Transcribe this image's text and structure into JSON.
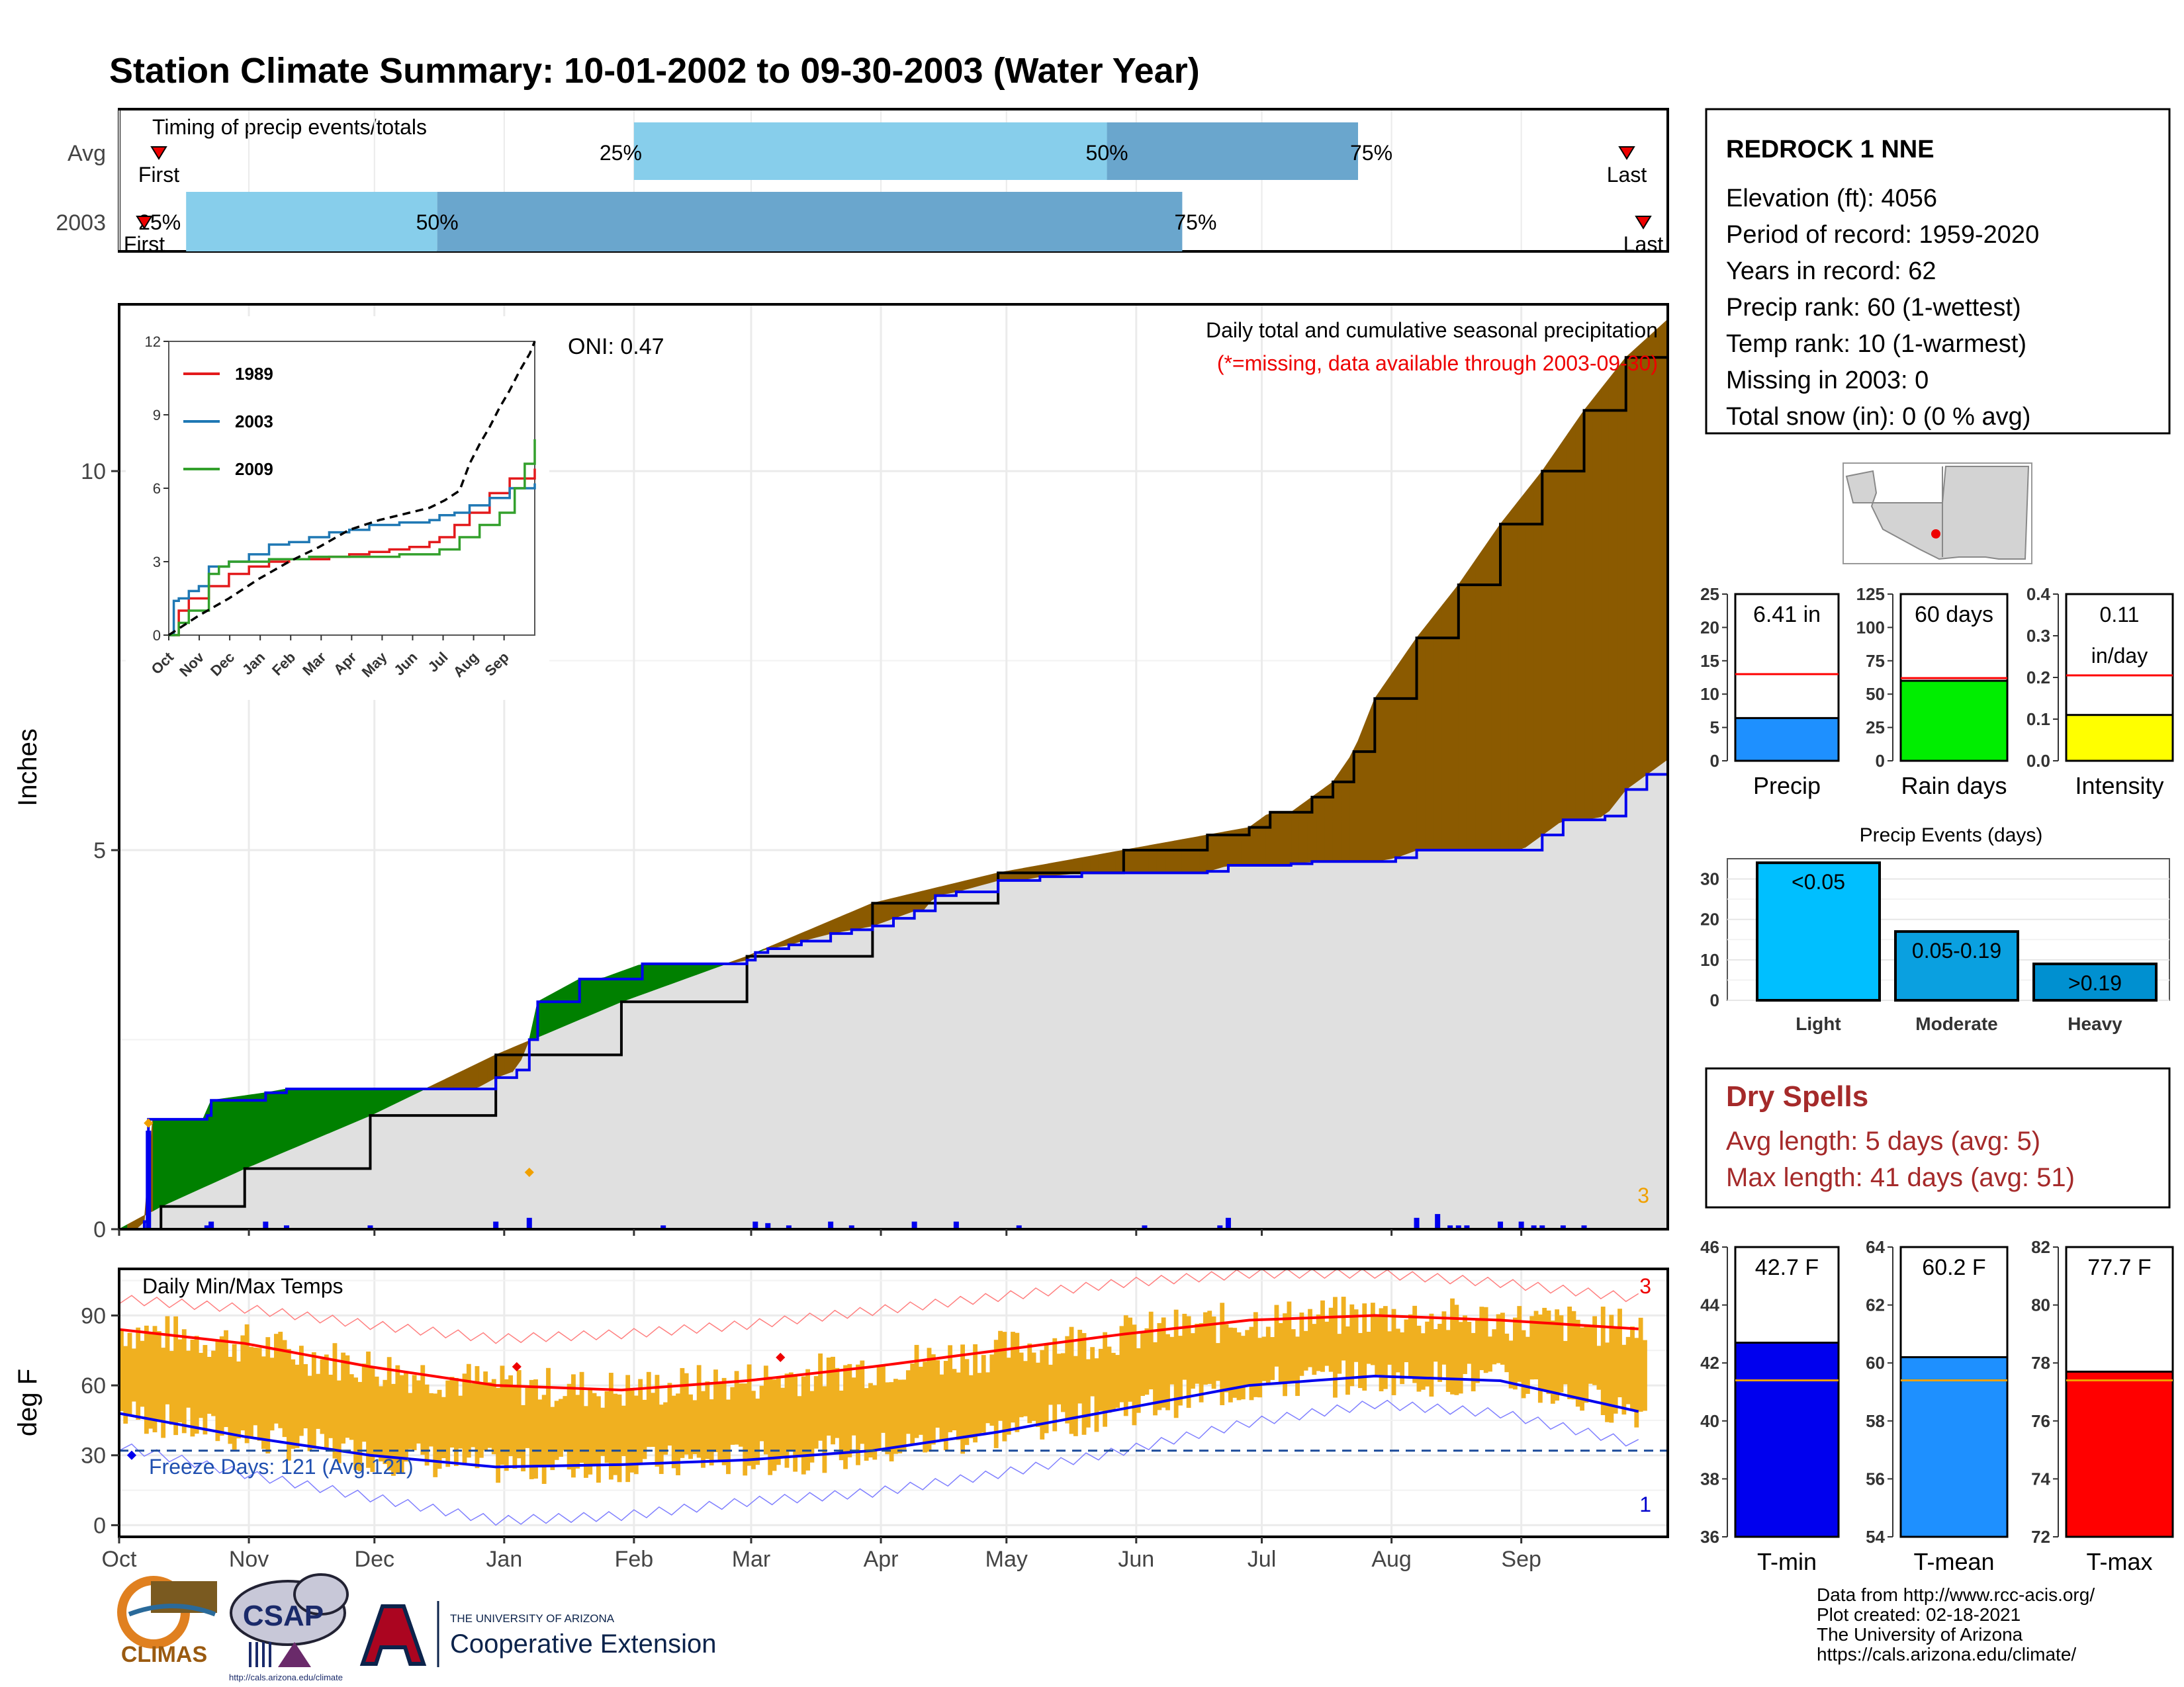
{
  "title": "Station Climate Summary: 10-01-2002 to 09-30-2003 (Water Year)",
  "colors": {
    "title": "#8b2a0a",
    "light_blue": "#87ceeb",
    "mid_blue": "#6aa6cd",
    "green": "#008000",
    "brown": "#8b5a00",
    "gray_fill": "#e0e0e0",
    "precip_blue": "#1e90ff",
    "raindays_green": "#00ee00",
    "intensity_yellow": "#ffff00",
    "temp_orange": "#f0b020",
    "tmin_blue": "#0000ee",
    "tmax_red": "#ff0000",
    "dry_spell_red": "#a52a2a",
    "cyan": "#00bfff"
  },
  "station": {
    "name": "REDROCK 1 NNE",
    "lines": [
      "Elevation (ft): 4056",
      "Period of record: 1959-2020",
      "Years in record: 62",
      "Precip rank: 60 (1-wettest)",
      "Temp rank: 10 (1-warmest)",
      "Missing in 2003: 0",
      "Total snow (in): 0 (0 % avg)"
    ]
  },
  "dry_spells": {
    "title": "Dry Spells",
    "avg_line": "Avg length: 5 days (avg: 5)",
    "max_line": "Max length: 41 days (avg: 51)"
  },
  "footer": {
    "lines": [
      "Data from http://www.rcc-acis.org/",
      "Plot created: 02-18-2021",
      "The University of Arizona",
      "https://cals.arizona.edu/climate/"
    ],
    "logos": {
      "climas": "CLIMAS",
      "csap": "CSAP",
      "csap_url": "http://cals.arizona.edu/climate",
      "ua_small": "THE UNIVERSITY OF ARIZONA",
      "ua_big": "Cooperative Extension"
    }
  },
  "month_labels": [
    "Oct",
    "Nov",
    "Dec",
    "Jan",
    "Feb",
    "Mar",
    "Apr",
    "May",
    "Jun",
    "Jul",
    "Aug",
    "Sep"
  ],
  "timing": {
    "label": "Timing of precip events/totals",
    "rows": [
      {
        "name": "Avg",
        "first_label": "First",
        "last_label": "Last",
        "q25": "25%",
        "q50": "50%",
        "q75": "75%",
        "first_day": 4,
        "last_day": 367,
        "q25_day": 123,
        "q50_day": 236,
        "q75_day": 296
      },
      {
        "name": "2003",
        "first_label": "First",
        "last_label": "Last",
        "q25": "25%",
        "q50": "50%",
        "q75": "75%",
        "first_day": 1,
        "last_day": 370,
        "q25_day": 16,
        "q50_day": 76,
        "q75_day": 254
      }
    ]
  },
  "chart_data": [
    {
      "type": "area",
      "name": "precip",
      "title": "Daily total and cumulative seasonal precipitation",
      "subtitle": "(*=missing, data available through 2003-09-30)",
      "ylabel": "Inches",
      "ylim": [
        0,
        12.2
      ],
      "yticks": [
        0,
        5,
        10
      ],
      "oni_label": "ONI: 0.47",
      "corner_count": "3",
      "series": [
        {
          "name": "2003",
          "kind": "cumulative",
          "x": [
            0,
            5,
            6,
            7,
            20,
            21,
            22,
            35,
            40,
            60,
            85,
            90,
            95,
            98,
            100,
            110,
            115,
            125,
            130,
            145,
            150,
            152,
            155,
            160,
            163,
            170,
            175,
            180,
            185,
            190,
            192,
            195,
            200,
            210,
            215,
            220,
            230,
            240,
            245,
            250,
            260,
            265,
            270,
            275,
            280,
            285,
            290,
            300,
            305,
            310,
            318,
            320,
            322,
            325,
            330,
            335,
            340,
            345,
            350,
            355,
            360,
            365,
            370
          ],
          "y": [
            0,
            0,
            0.1,
            1.45,
            1.45,
            1.5,
            1.7,
            1.8,
            1.85,
            1.85,
            1.85,
            2.0,
            2.1,
            2.5,
            3.0,
            3.3,
            3.3,
            3.5,
            3.5,
            3.5,
            3.55,
            3.65,
            3.7,
            3.75,
            3.8,
            3.9,
            3.95,
            4.0,
            4.1,
            4.2,
            4.2,
            4.4,
            4.45,
            4.6,
            4.6,
            4.65,
            4.7,
            4.7,
            4.7,
            4.7,
            4.72,
            4.8,
            4.8,
            4.8,
            4.82,
            4.85,
            4.85,
            4.85,
            4.9,
            5.0,
            5.0,
            5.0,
            5.0,
            5.0,
            5.0,
            5.0,
            5.2,
            5.4,
            5.4,
            5.45,
            5.8,
            6.0,
            6.2
          ]
        },
        {
          "name": "Avg",
          "kind": "cumulative",
          "x": [
            0,
            10,
            30,
            60,
            90,
            120,
            150,
            180,
            210,
            240,
            260,
            270,
            275,
            280,
            285,
            290,
            295,
            300,
            310,
            320,
            330,
            340,
            350,
            360,
            370
          ],
          "y": [
            0,
            0.3,
            0.8,
            1.5,
            2.3,
            3.0,
            3.6,
            4.3,
            4.7,
            5.0,
            5.2,
            5.3,
            5.5,
            5.5,
            5.7,
            5.9,
            6.3,
            7.0,
            7.8,
            8.5,
            9.3,
            10.0,
            10.8,
            11.5,
            12.0
          ]
        },
        {
          "name": "daily",
          "kind": "daily_bars",
          "days": [
            7,
            21,
            22,
            35,
            40,
            60,
            90,
            98,
            130,
            152,
            155,
            160,
            170,
            175,
            190,
            200,
            215,
            245,
            263,
            265,
            310,
            315,
            318,
            320,
            322,
            330,
            335,
            338,
            340,
            345,
            350
          ],
          "inches": [
            1.3,
            0.05,
            0.1,
            0.1,
            0.05,
            0.05,
            0.1,
            0.15,
            0.05,
            0.1,
            0.08,
            0.05,
            0.1,
            0.05,
            0.1,
            0.1,
            0.05,
            0.05,
            0.05,
            0.15,
            0.15,
            0.2,
            0.05,
            0.05,
            0.05,
            0.1,
            0.1,
            0.05,
            0.05,
            0.05,
            0.05
          ]
        }
      ],
      "inset": {
        "type": "line",
        "yticks": [
          0,
          3,
          6,
          9,
          12
        ],
        "xticks": [
          "Oct",
          "Nov",
          "Dec",
          "Jan",
          "Feb",
          "Mar",
          "Apr",
          "May",
          "Jun",
          "Jul",
          "Aug",
          "Sep"
        ],
        "series": [
          {
            "name": "1989",
            "color": "#e31a1c",
            "x": [
              0,
              10,
              20,
              40,
              60,
              80,
              100,
              120,
              160,
              180,
              200,
              220,
              240,
              260,
              270,
              285,
              300,
              320,
              340,
              365
            ],
            "y": [
              0,
              1,
              1.5,
              2.0,
              2.5,
              2.8,
              3.0,
              3.1,
              3.2,
              3.3,
              3.4,
              3.5,
              3.6,
              3.8,
              4.0,
              4.5,
              5.0,
              5.8,
              6.4,
              6.8
            ]
          },
          {
            "name": "2003",
            "color": "#1f78b4",
            "x": [
              0,
              5,
              10,
              20,
              30,
              40,
              60,
              80,
              100,
              120,
              140,
              160,
              180,
              200,
              230,
              260,
              270,
              285,
              300,
              320,
              340,
              365
            ],
            "y": [
              0,
              1.4,
              1.5,
              1.8,
              2.0,
              2.8,
              3.0,
              3.3,
              3.7,
              3.8,
              4.0,
              4.2,
              4.3,
              4.5,
              4.6,
              4.7,
              4.9,
              5.0,
              5.3,
              5.6,
              6.0,
              6.2
            ]
          },
          {
            "name": "2009",
            "color": "#33a02c",
            "x": [
              0,
              10,
              20,
              40,
              50,
              60,
              80,
              100,
              120,
              140,
              160,
              180,
              200,
              230,
              260,
              270,
              290,
              310,
              330,
              345,
              355,
              365
            ],
            "y": [
              0,
              0.5,
              1.0,
              2.5,
              2.8,
              3.0,
              3.0,
              3.1,
              3.1,
              3.2,
              3.2,
              3.2,
              3.2,
              3.3,
              3.3,
              3.5,
              4.0,
              4.5,
              5.0,
              6.0,
              7.0,
              8.0
            ]
          },
          {
            "name": "Avg",
            "color": "#000000",
            "dashed": true,
            "x": [
              0,
              30,
              60,
              90,
              120,
              150,
              180,
              210,
              240,
              260,
              275,
              290,
              300,
              310,
              320,
              330,
              340,
              350,
              360,
              365
            ],
            "y": [
              0,
              0.8,
              1.5,
              2.3,
              3.0,
              3.6,
              4.3,
              4.7,
              5.0,
              5.2,
              5.5,
              5.9,
              7.0,
              7.8,
              8.5,
              9.3,
              10.0,
              10.8,
              11.5,
              12.0
            ]
          }
        ]
      }
    },
    {
      "type": "bar",
      "name": "temps",
      "title": "Daily Min/Max Temps",
      "ylabel": "deg F",
      "ylim": [
        -5,
        110
      ],
      "yticks": [
        0,
        30,
        60,
        90
      ],
      "freeze_label": "Freeze Days: 121 (Avg.121)",
      "freeze_line": 32,
      "max_record_count": "3",
      "min_record_count": "1",
      "series": [
        {
          "name": "Tmax avg",
          "x": [
            0,
            30,
            60,
            90,
            120,
            150,
            180,
            210,
            240,
            270,
            300,
            330,
            365
          ],
          "y": [
            84,
            78,
            68,
            60,
            58,
            62,
            68,
            75,
            82,
            88,
            90,
            88,
            84
          ]
        },
        {
          "name": "Tmin avg",
          "x": [
            0,
            30,
            60,
            90,
            120,
            150,
            180,
            210,
            240,
            270,
            300,
            330,
            365
          ],
          "y": [
            48,
            38,
            30,
            25,
            26,
            28,
            32,
            40,
            50,
            60,
            64,
            62,
            48
          ]
        },
        {
          "name": "Tmax record",
          "x": [
            0,
            30,
            60,
            90,
            120,
            150,
            180,
            210,
            240,
            270,
            300,
            330,
            365
          ],
          "y": [
            97,
            93,
            86,
            80,
            82,
            86,
            92,
            98,
            104,
            108,
            108,
            104,
            97
          ]
        },
        {
          "name": "Tmin record",
          "x": [
            0,
            30,
            60,
            90,
            120,
            150,
            180,
            210,
            240,
            270,
            300,
            330,
            365
          ],
          "y": [
            34,
            22,
            12,
            2,
            4,
            10,
            14,
            22,
            32,
            44,
            52,
            48,
            34
          ]
        }
      ]
    },
    {
      "type": "bar",
      "name": "precip_summary",
      "ylim": [
        0,
        25
      ],
      "yticks": [
        0,
        5,
        10,
        15,
        20,
        25
      ],
      "categories": [
        "Precip"
      ],
      "values": [
        6.41
      ],
      "avg": 13,
      "label": "6.41 in"
    },
    {
      "type": "bar",
      "name": "raindays_summary",
      "ylim": [
        0,
        125
      ],
      "yticks": [
        0,
        25,
        50,
        75,
        100,
        125
      ],
      "categories": [
        "Rain days"
      ],
      "values": [
        60
      ],
      "avg": 62,
      "label": "60 days"
    },
    {
      "type": "bar",
      "name": "intensity_summary",
      "ylim": [
        0,
        0.4
      ],
      "yticks": [
        "0.0",
        "0.1",
        "0.2",
        "0.3",
        "0.4"
      ],
      "categories": [
        "Intensity"
      ],
      "values": [
        0.11
      ],
      "avg": 0.205,
      "label_lines": [
        "0.11",
        "in/day"
      ]
    },
    {
      "type": "bar",
      "name": "precip_events",
      "title": "Precip Events (days)",
      "ylim": [
        0,
        35
      ],
      "yticks": [
        0,
        10,
        20,
        30
      ],
      "categories": [
        "Light",
        "Moderate",
        "Heavy"
      ],
      "values": [
        34,
        17,
        9
      ],
      "labels": [
        "<0.05",
        "0.05-0.19",
        ">0.19"
      ]
    },
    {
      "type": "bar",
      "name": "tmin_summary",
      "ylim": [
        36,
        46
      ],
      "yticks": [
        36,
        38,
        40,
        42,
        44,
        46
      ],
      "categories": [
        "T-min"
      ],
      "values": [
        42.7
      ],
      "avg": 41.4,
      "label": "42.7 F"
    },
    {
      "type": "bar",
      "name": "tmean_summary",
      "ylim": [
        54,
        64
      ],
      "yticks": [
        54,
        56,
        58,
        60,
        62,
        64
      ],
      "categories": [
        "T-mean"
      ],
      "values": [
        60.2
      ],
      "avg": 59.4,
      "label": "60.2 F"
    },
    {
      "type": "bar",
      "name": "tmax_summary",
      "ylim": [
        72,
        82
      ],
      "yticks": [
        72,
        74,
        76,
        78,
        80,
        82
      ],
      "categories": [
        "T-max"
      ],
      "values": [
        77.7
      ],
      "avg": 77.4,
      "label": "77.7 F"
    }
  ]
}
